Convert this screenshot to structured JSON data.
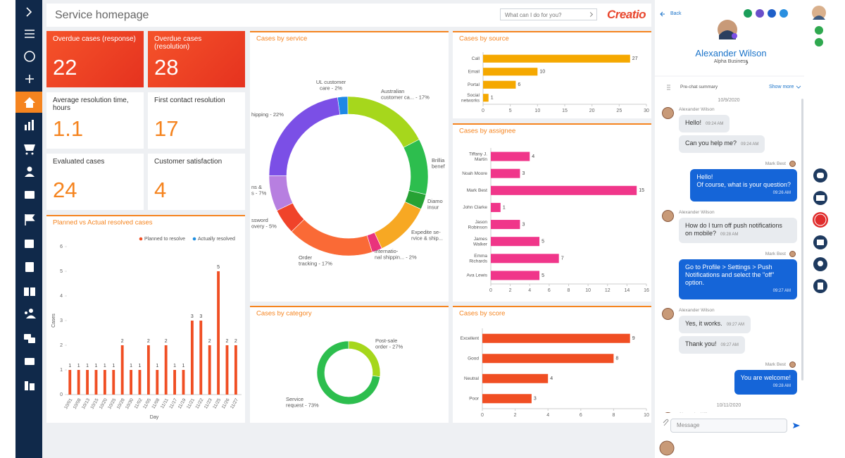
{
  "header": {
    "title": "Service homepage",
    "search_placeholder": "What can I do for you?",
    "logo": "Creatio"
  },
  "kpis": [
    {
      "label": "Overdue cases (response)",
      "value": 22,
      "highlight": true
    },
    {
      "label": "Overdue cases (resolution)",
      "value": 28,
      "highlight": true
    },
    {
      "label": "Average resolution time, hours",
      "value": 1.1,
      "highlight": false
    },
    {
      "label": "First contact resolution",
      "value": 17,
      "highlight": false
    },
    {
      "label": "Evaluated cases",
      "value": 24,
      "highlight": false
    },
    {
      "label": "Customer satisfaction",
      "value": 4,
      "highlight": false
    }
  ],
  "chat": {
    "back": "Back",
    "contact": {
      "name": "Alexander Wilson",
      "company": "Alpha Business"
    },
    "summary": "Pre-chat summary",
    "show_more": "Show more",
    "thread": [
      {
        "date": "10/9/2020"
      },
      {
        "author": "Alexander Wilson",
        "outgoing": false,
        "bubbles": [
          {
            "text": "Hello!",
            "time": "09:24 AM"
          },
          {
            "text": "Can you help me?",
            "time": "09:24 AM"
          }
        ]
      },
      {
        "author": "Mark Best",
        "outgoing": true,
        "bubbles": [
          {
            "text": "Hello!\nOf course, what is your question?",
            "time": "09:26 AM"
          }
        ]
      },
      {
        "author": "Alexander Wilson",
        "outgoing": false,
        "bubbles": [
          {
            "text": "How do I turn off push notifications on mobile?",
            "time": "09:28 AM"
          }
        ]
      },
      {
        "author": "Mark Best",
        "outgoing": true,
        "bubbles": [
          {
            "text": "Go to Profile > Settings > Push Notifications and select the \"off\" option.",
            "time": "09:27 AM"
          }
        ]
      },
      {
        "author": "Alexander Wilson",
        "outgoing": false,
        "bubbles": [
          {
            "text": "Yes, it works.",
            "time": "09:27 AM"
          },
          {
            "text": "Thank you!",
            "time": "09:27 AM"
          }
        ]
      },
      {
        "author": "Mark Best",
        "outgoing": true,
        "bubbles": [
          {
            "text": "You are welcome!",
            "time": "09:28 AM"
          }
        ]
      },
      {
        "date": "10/11/2020"
      },
      {
        "author": "Alexander Wilson",
        "outgoing": false,
        "bubbles": []
      }
    ],
    "input_placeholder": "Message"
  },
  "chart_data": [
    {
      "type": "bar",
      "title": "Planned vs Actual resolved cases",
      "categories": [
        "10/01",
        "10/08",
        "10/13",
        "10/15",
        "10/20",
        "10/25",
        "10/28",
        "10/30",
        "11/02",
        "11/05",
        "11/08",
        "11/11",
        "11/17",
        "11/19",
        "11/21",
        "11/22",
        "11/23",
        "11/25",
        "11/26",
        "11/27"
      ],
      "series": [
        {
          "name": "Planned to resolve",
          "color": "#f04e23",
          "values": [
            1,
            1,
            1,
            1,
            1,
            1,
            2,
            1,
            1,
            2,
            1,
            2,
            1,
            1,
            3,
            3,
            2,
            5,
            2,
            2
          ]
        },
        {
          "name": "Actually resolved",
          "color": "#1f8fe0",
          "values": [
            null,
            null,
            null,
            null,
            null,
            null,
            null,
            null,
            null,
            null,
            null,
            null,
            null,
            null,
            null,
            null,
            null,
            null,
            null,
            null
          ]
        }
      ],
      "ylim": [
        0,
        6
      ],
      "yticks": [
        0,
        1,
        2,
        3,
        4,
        5,
        6
      ],
      "y_label": "Cases",
      "x_label": "Day",
      "grid": false
    },
    {
      "type": "donut",
      "title": "Cases by service",
      "labels": [
        "UL customer\ncare - 2%",
        "Australian\ncustomer ca... - 17%",
        "Brillia\nbenef",
        "Diamo\ninsur",
        "Expedite se-\nrvice & ship...",
        "internatio-\nnal shippin... - 2%",
        "Order\ntracking - 17%",
        "ssword\novery - 5%",
        "ns &\ns - 7%",
        "hipping - 22%"
      ],
      "values": [
        2,
        17,
        11,
        3,
        11,
        2,
        17,
        5,
        7,
        22
      ],
      "colors": [
        "#1e88e5",
        "#a6d71c",
        "#2dbe4e",
        "#26a234",
        "#f7a823",
        "#e9337c",
        "#fa6a36",
        "#f0432a",
        "#b77fe0",
        "#7b4fe6"
      ]
    },
    {
      "type": "donut",
      "title": "Cases by category",
      "labels": [
        "Post-sale\norder - 27%",
        "Service\nrequest - 73%"
      ],
      "values": [
        27,
        73
      ],
      "colors": [
        "#a6d71c",
        "#2dbe4e"
      ]
    },
    {
      "type": "barh",
      "title": "Cases by source",
      "categories": [
        "Call",
        "Email",
        "Portal",
        "Social\nnetworks"
      ],
      "values": [
        27,
        10,
        6,
        1
      ],
      "color": "#f5a800",
      "xlim": [
        0,
        30
      ],
      "xticks": [
        0,
        5,
        10,
        15,
        20,
        25,
        30
      ],
      "grid": false
    },
    {
      "type": "barh",
      "title": "Cases by assignee",
      "categories": [
        "Tiffany J.\nMartin",
        "Noah Moore",
        "Mark Best",
        "John Clarke",
        "Jason\nRobinson",
        "James\nWalker",
        "Emma\nRichards",
        "Ava Lewis"
      ],
      "values": [
        4,
        3,
        15,
        1,
        3,
        5,
        7,
        5
      ],
      "color": "#f0368a",
      "xlim": [
        0,
        16
      ],
      "xticks": [
        0,
        2,
        4,
        6,
        8,
        10,
        12,
        14,
        16
      ],
      "grid": false
    },
    {
      "type": "barh",
      "title": "Cases by score",
      "categories": [
        "Excellent",
        "Good",
        "Neutral",
        "Poor"
      ],
      "values": [
        9,
        8,
        4,
        3
      ],
      "color": "#f04e23",
      "xlim": [
        0,
        10
      ],
      "xticks": [
        0,
        2,
        4,
        6,
        8,
        10
      ],
      "grid": false
    }
  ]
}
